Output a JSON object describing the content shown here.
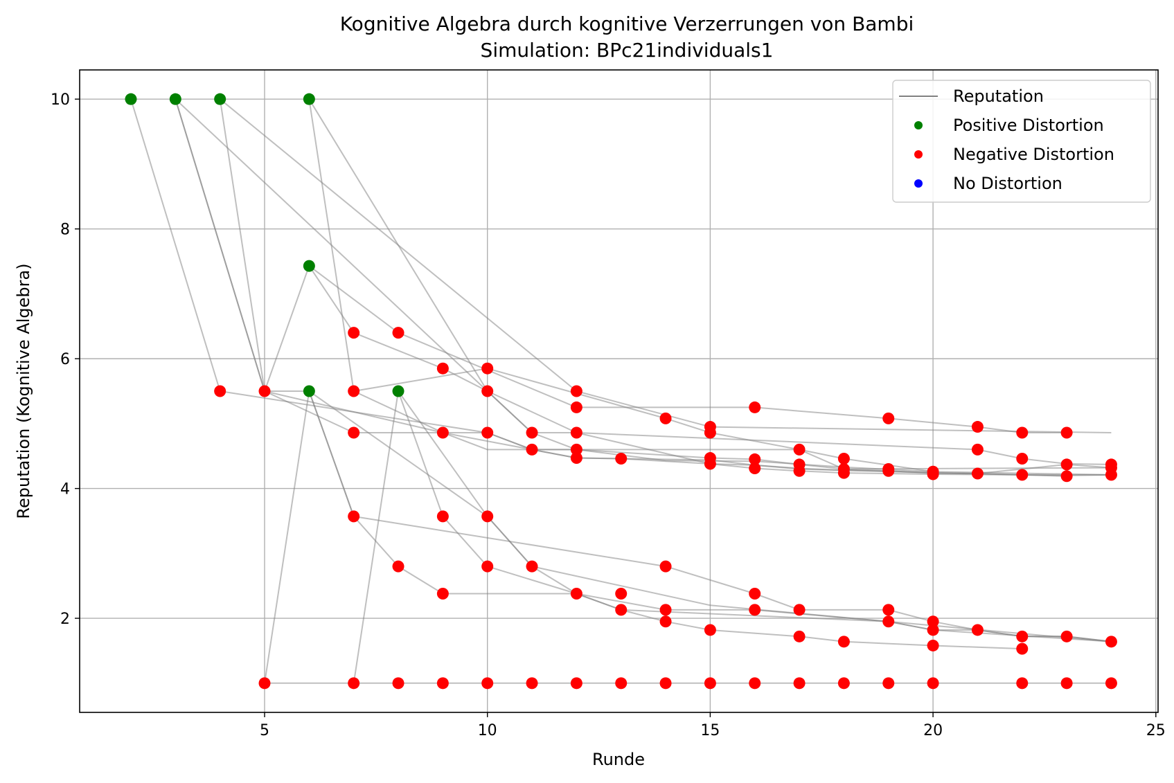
{
  "chart_data": {
    "type": "scatter",
    "title": "Kognitive Algebra durch kognitive Verzerrungen von Bambi",
    "subtitle": "Simulation: BPc21individuals1",
    "xlabel": "Runde",
    "ylabel": "Reputation (Kognitive Algebra)",
    "xlim": [
      0.85,
      25.05
    ],
    "ylim": [
      0.55,
      10.45
    ],
    "xticks": [
      5,
      10,
      15,
      20,
      25
    ],
    "yticks": [
      2,
      4,
      6,
      8,
      10
    ],
    "grid": true,
    "legend_position": "top-right",
    "legend": [
      {
        "label": "Reputation",
        "kind": "line",
        "color": "#808080"
      },
      {
        "label": "Positive Distortion",
        "kind": "marker",
        "color": "#008000"
      },
      {
        "label": "Negative Distortion",
        "kind": "marker",
        "color": "#ff0000"
      },
      {
        "label": "No Distortion",
        "kind": "marker",
        "color": "#0000ff"
      }
    ],
    "series_lines": [
      [
        [
          2,
          10
        ],
        [
          4,
          5.5
        ],
        [
          10,
          4.86
        ],
        [
          11,
          4.6
        ],
        [
          12,
          4.47
        ],
        [
          13,
          4.46
        ],
        [
          15,
          4.38
        ],
        [
          16,
          4.31
        ],
        [
          17,
          4.27
        ],
        [
          18,
          4.24
        ],
        [
          20,
          4.22
        ],
        [
          22,
          4.21
        ],
        [
          24,
          4.21
        ]
      ],
      [
        [
          3,
          10
        ],
        [
          5,
          5.5
        ],
        [
          6,
          5.5
        ],
        [
          7,
          3.57
        ],
        [
          8,
          2.8
        ],
        [
          9,
          2.38
        ],
        [
          12,
          2.38
        ],
        [
          13,
          2.13
        ],
        [
          14,
          1.95
        ],
        [
          15,
          1.82
        ],
        [
          17,
          1.72
        ],
        [
          18,
          1.64
        ],
        [
          20,
          1.58
        ],
        [
          22,
          1.53
        ]
      ],
      [
        [
          3,
          10
        ],
        [
          5,
          5.5
        ],
        [
          6,
          7.43
        ],
        [
          7,
          6.4
        ],
        [
          9,
          5.85
        ],
        [
          10,
          5.5
        ],
        [
          11,
          4.86
        ],
        [
          12,
          4.6
        ],
        [
          15,
          4.47
        ],
        [
          16,
          4.45
        ],
        [
          17,
          4.37
        ],
        [
          18,
          4.3
        ],
        [
          19,
          4.27
        ],
        [
          20,
          4.24
        ],
        [
          22,
          4.21
        ],
        [
          23,
          4.19
        ]
      ],
      [
        [
          3,
          10
        ],
        [
          10,
          5.5
        ],
        [
          12,
          4.86
        ],
        [
          15,
          4.38
        ],
        [
          16,
          4.36
        ],
        [
          17,
          4.31
        ],
        [
          18,
          4.28
        ],
        [
          19,
          4.26
        ],
        [
          20,
          4.24
        ],
        [
          21,
          4.23
        ],
        [
          23,
          4.37
        ],
        [
          24,
          4.32
        ]
      ],
      [
        [
          4,
          10
        ],
        [
          5,
          5.5
        ],
        [
          7,
          4.86
        ],
        [
          9,
          4.86
        ],
        [
          10,
          4.6
        ],
        [
          12,
          4.6
        ],
        [
          14,
          4.43
        ],
        [
          16,
          4.42
        ],
        [
          18,
          4.33
        ],
        [
          20,
          4.26
        ]
      ],
      [
        [
          4,
          10
        ],
        [
          12,
          5.5
        ],
        [
          15,
          4.95
        ],
        [
          24,
          4.86
        ]
      ],
      [
        [
          6,
          10
        ],
        [
          7,
          5.5
        ],
        [
          9,
          4.86
        ],
        [
          10,
          4.86
        ],
        [
          11,
          4.6
        ],
        [
          12,
          4.47
        ],
        [
          13,
          4.46
        ],
        [
          15,
          4.44
        ],
        [
          16,
          4.36
        ],
        [
          17,
          4.3
        ],
        [
          18,
          4.28
        ],
        [
          19,
          4.27
        ],
        [
          20,
          4.24
        ],
        [
          21,
          4.23
        ],
        [
          22,
          4.21
        ],
        [
          23,
          4.2
        ],
        [
          24,
          4.21
        ]
      ],
      [
        [
          6,
          10
        ],
        [
          10,
          5.5
        ],
        [
          11,
          4.86
        ],
        [
          12,
          4.86
        ],
        [
          21,
          4.6
        ],
        [
          22,
          4.46
        ],
        [
          23,
          4.38
        ],
        [
          24,
          4.37
        ]
      ],
      [
        [
          5,
          1
        ],
        [
          6,
          5.5
        ],
        [
          7,
          3.57
        ],
        [
          14,
          2.8
        ],
        [
          16,
          2.38
        ],
        [
          17,
          2.13
        ],
        [
          19,
          2.13
        ],
        [
          20,
          1.95
        ],
        [
          21,
          1.82
        ],
        [
          22,
          1.72
        ],
        [
          23,
          1.72
        ],
        [
          24,
          1.64
        ]
      ],
      [
        [
          5,
          1
        ],
        [
          24,
          1
        ]
      ],
      [
        [
          7,
          1
        ],
        [
          8,
          5.5
        ],
        [
          9,
          3.57
        ],
        [
          10,
          2.8
        ],
        [
          12,
          2.38
        ],
        [
          14,
          2.13
        ],
        [
          16,
          2.13
        ],
        [
          19,
          1.95
        ],
        [
          20,
          1.82
        ],
        [
          21,
          1.82
        ],
        [
          22,
          1.72
        ],
        [
          23,
          1.72
        ],
        [
          24,
          1.64
        ]
      ],
      [
        [
          6,
          5.5
        ],
        [
          10,
          3.57
        ],
        [
          11,
          2.8
        ],
        [
          12,
          2.38
        ],
        [
          13,
          2.13
        ],
        [
          15,
          2.07
        ],
        [
          19,
          1.95
        ],
        [
          20,
          1.82
        ],
        [
          24,
          1.64
        ]
      ],
      [
        [
          6,
          7.43
        ],
        [
          8,
          6.4
        ],
        [
          12,
          5.25
        ],
        [
          16,
          5.25
        ],
        [
          19,
          5.08
        ],
        [
          21,
          4.95
        ],
        [
          22,
          4.86
        ],
        [
          23,
          4.86
        ]
      ],
      [
        [
          5,
          5.5
        ],
        [
          9,
          4.86
        ],
        [
          11,
          4.6
        ],
        [
          17,
          4.6
        ],
        [
          18,
          4.46
        ],
        [
          20,
          4.26
        ],
        [
          24,
          4.21
        ]
      ],
      [
        [
          7,
          5.5
        ],
        [
          10,
          5.85
        ],
        [
          14,
          5.08
        ],
        [
          15,
          4.86
        ],
        [
          17,
          4.6
        ],
        [
          18,
          4.3
        ],
        [
          24,
          4.32
        ]
      ],
      [
        [
          8,
          5.5
        ],
        [
          10,
          3.57
        ],
        [
          11,
          2.8
        ],
        [
          15,
          2.2
        ],
        [
          19,
          1.95
        ],
        [
          24,
          1.64
        ]
      ]
    ],
    "points_negative": [
      [
        4,
        5.5
      ],
      [
        5,
        5.5
      ],
      [
        7,
        6.4
      ],
      [
        8,
        6.4
      ],
      [
        9,
        5.85
      ],
      [
        10,
        5.85
      ],
      [
        7,
        5.5
      ],
      [
        10,
        5.5
      ],
      [
        12,
        5.5
      ],
      [
        12,
        5.25
      ],
      [
        14,
        5.08
      ],
      [
        15,
        4.95
      ],
      [
        15,
        4.86
      ],
      [
        16,
        5.25
      ],
      [
        19,
        5.08
      ],
      [
        21,
        4.95
      ],
      [
        22,
        4.86
      ],
      [
        23,
        4.86
      ],
      [
        7,
        4.86
      ],
      [
        9,
        4.86
      ],
      [
        10,
        4.86
      ],
      [
        11,
        4.86
      ],
      [
        12,
        4.86
      ],
      [
        11,
        4.6
      ],
      [
        12,
        4.6
      ],
      [
        12,
        4.47
      ],
      [
        13,
        4.46
      ],
      [
        15,
        4.47
      ],
      [
        15,
        4.38
      ],
      [
        16,
        4.45
      ],
      [
        16,
        4.31
      ],
      [
        17,
        4.6
      ],
      [
        17,
        4.37
      ],
      [
        17,
        4.27
      ],
      [
        18,
        4.46
      ],
      [
        18,
        4.3
      ],
      [
        18,
        4.24
      ],
      [
        19,
        4.3
      ],
      [
        19,
        4.27
      ],
      [
        20,
        4.26
      ],
      [
        20,
        4.22
      ],
      [
        21,
        4.6
      ],
      [
        21,
        4.23
      ],
      [
        22,
        4.46
      ],
      [
        22,
        4.21
      ],
      [
        23,
        4.37
      ],
      [
        23,
        4.19
      ],
      [
        24,
        4.37
      ],
      [
        24,
        4.32
      ],
      [
        24,
        4.21
      ],
      [
        7,
        3.57
      ],
      [
        9,
        3.57
      ],
      [
        10,
        3.57
      ],
      [
        8,
        2.8
      ],
      [
        10,
        2.8
      ],
      [
        11,
        2.8
      ],
      [
        14,
        2.8
      ],
      [
        9,
        2.38
      ],
      [
        12,
        2.38
      ],
      [
        13,
        2.38
      ],
      [
        16,
        2.38
      ],
      [
        13,
        2.13
      ],
      [
        14,
        2.13
      ],
      [
        16,
        2.13
      ],
      [
        17,
        2.13
      ],
      [
        19,
        2.13
      ],
      [
        14,
        1.95
      ],
      [
        19,
        1.95
      ],
      [
        20,
        1.95
      ],
      [
        15,
        1.82
      ],
      [
        20,
        1.82
      ],
      [
        21,
        1.82
      ],
      [
        17,
        1.72
      ],
      [
        22,
        1.72
      ],
      [
        23,
        1.72
      ],
      [
        18,
        1.64
      ],
      [
        24,
        1.64
      ],
      [
        20,
        1.58
      ],
      [
        22,
        1.53
      ],
      [
        5,
        1
      ],
      [
        7,
        1
      ],
      [
        8,
        1
      ],
      [
        9,
        1
      ],
      [
        10,
        1
      ],
      [
        11,
        1
      ],
      [
        12,
        1
      ],
      [
        13,
        1
      ],
      [
        14,
        1
      ],
      [
        15,
        1
      ],
      [
        16,
        1
      ],
      [
        17,
        1
      ],
      [
        18,
        1
      ],
      [
        19,
        1
      ],
      [
        20,
        1
      ],
      [
        22,
        1
      ],
      [
        23,
        1
      ],
      [
        24,
        1
      ]
    ],
    "points_positive": [
      [
        2,
        10
      ],
      [
        3,
        10
      ],
      [
        4,
        10
      ],
      [
        6,
        10
      ],
      [
        6,
        7.43
      ],
      [
        6,
        5.5
      ],
      [
        8,
        5.5
      ]
    ],
    "points_none": []
  }
}
